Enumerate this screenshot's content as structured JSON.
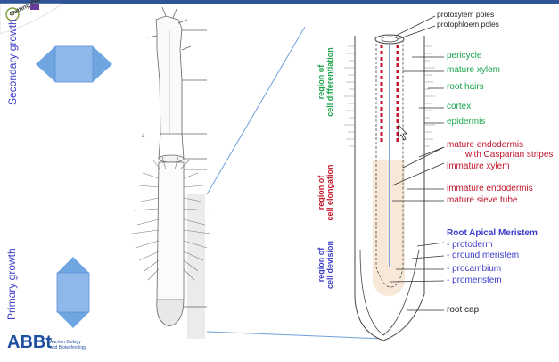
{
  "corner_logo": {
    "text": "Getting Practi"
  },
  "side_labels": {
    "secondary": "Secondary growth",
    "primary": "Primary growth"
  },
  "left_figure": {
    "label_a": "a"
  },
  "regions": {
    "differentiation": [
      "region of",
      "cell differentiation"
    ],
    "elongation": [
      "region of",
      "cell elongation"
    ],
    "division": [
      "region of",
      "cell devision"
    ]
  },
  "labels": {
    "protoxylem_poles": "protoxylem poles",
    "protophloem_poles": "protophloem poles",
    "pericycle": "pericycle",
    "mature_xylem": "mature xylem",
    "root_hairs": "root hairs",
    "cortex": "cortex",
    "epidermis": "epidermis",
    "mature_endodermis": "mature endodermis",
    "casparian": "with Casparian stripes",
    "immature_xylem": "immature xylem",
    "immature_endodermis": "immature endodermis",
    "mature_sieve_tube": "mature sieve tube",
    "ram_title": "Root Apical Meristem",
    "protoderm": "- protoderm",
    "ground_meristem": "- ground meristem",
    "procambium": "- procambium",
    "promeristem": "- promeristem",
    "root_cap": "root cap"
  },
  "footer_logo": {
    "mark": "ABBt",
    "line1": "Aachen Biology",
    "line2": "and Biotechnology"
  },
  "colors": {
    "green": "#1aa34a",
    "red": "#c0152a",
    "blue": "#3c3cc8",
    "arrow_blue": "#6fa5e0",
    "box_blue": "#8fb8ea",
    "logo_blue": "#1f4fa0"
  }
}
